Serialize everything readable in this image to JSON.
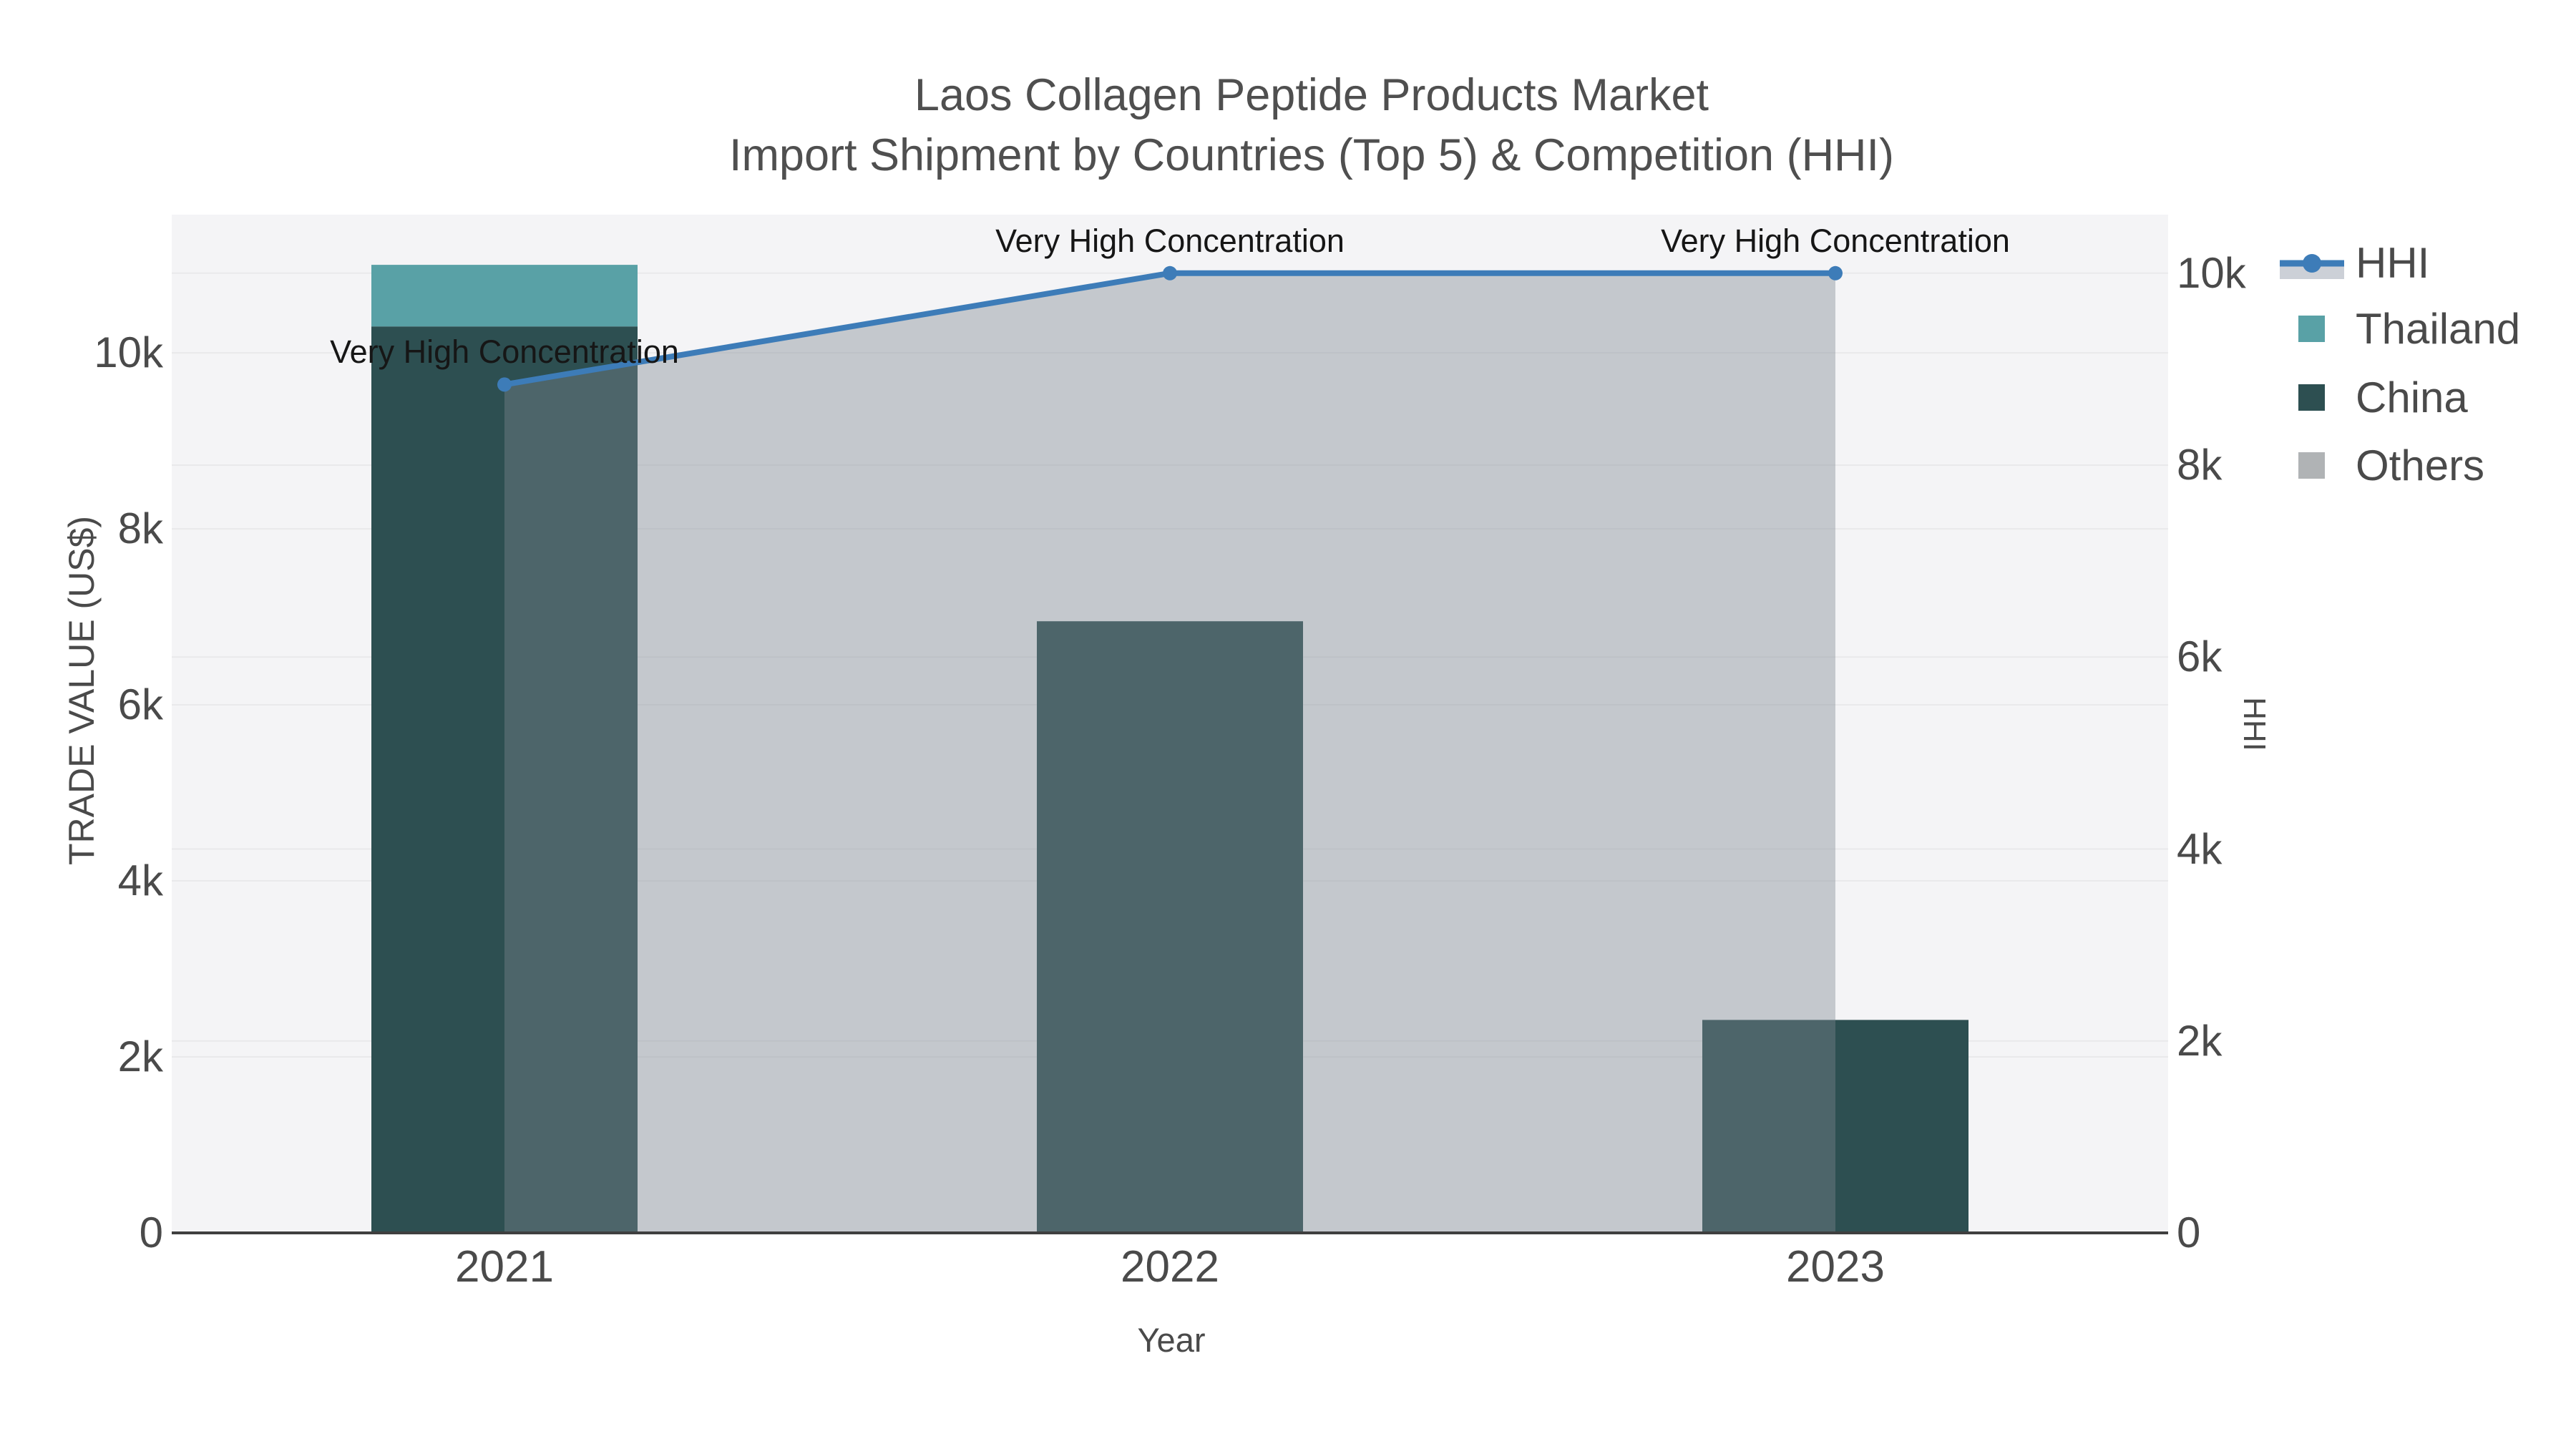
{
  "title": {
    "line1": "Laos Collagen Peptide Products Market",
    "line2": "Import Shipment by Countries (Top 5) & Competition (HHI)"
  },
  "axes": {
    "x": {
      "title": "Year",
      "ticks": [
        "2021",
        "2022",
        "2023"
      ]
    },
    "y_left": {
      "title": "TRADE VALUE (US$)",
      "ticks": [
        "0",
        "2k",
        "4k",
        "6k",
        "8k",
        "10k"
      ],
      "tick_values": [
        0,
        2000,
        4000,
        6000,
        8000,
        10000
      ]
    },
    "y_right": {
      "title": "HHI",
      "ticks": [
        "0",
        "2k",
        "4k",
        "6k",
        "8k",
        "10k"
      ],
      "tick_values": [
        0,
        2000,
        4000,
        6000,
        8000,
        10000
      ]
    }
  },
  "legend": {
    "items": [
      {
        "label": "HHI",
        "type": "line",
        "color": "#3d7cb8",
        "fill": "#ccd0d7"
      },
      {
        "label": "Thailand",
        "type": "bar",
        "color": "#59a1a6"
      },
      {
        "label": "China",
        "type": "bar",
        "color": "#2d4f51"
      },
      {
        "label": "Others",
        "type": "bar",
        "color": "#b0b3b5"
      }
    ]
  },
  "plot_colors": {
    "background": "#f4f4f6",
    "gridline": "#e9e9eb",
    "axis_line": "#3f3f3f",
    "hhi_area_fill": "rgba(125,134,144,0.40)"
  },
  "chart_data": {
    "type": "combo",
    "bar_mode": "stack",
    "categories": [
      "2021",
      "2022",
      "2023"
    ],
    "series": [
      {
        "name": "China",
        "type": "bar",
        "yaxis": "left",
        "color": "#2d4f51",
        "values": [
          10300,
          6950,
          2420
        ]
      },
      {
        "name": "Thailand",
        "type": "bar",
        "yaxis": "left",
        "color": "#59a1a6",
        "values": [
          700,
          0,
          0
        ]
      },
      {
        "name": "Others",
        "type": "bar",
        "yaxis": "left",
        "color": "#b0b3b5",
        "values": [
          0,
          0,
          0
        ]
      },
      {
        "name": "HHI",
        "type": "line",
        "yaxis": "right",
        "color": "#3d7cb8",
        "values": [
          8840,
          10000,
          10000
        ]
      }
    ],
    "annotations": [
      {
        "x": "2021",
        "text": "Very High Concentration"
      },
      {
        "x": "2022",
        "text": "Very High Concentration"
      },
      {
        "x": "2023",
        "text": "Very High Concentration"
      }
    ],
    "title": "Laos Collagen Peptide Products Market  Import Shipment by Countries (Top 5) & Competition (HHI)",
    "xlabel": "Year",
    "ylabel_left": "TRADE VALUE (US$)",
    "ylabel_right": "HHI",
    "y_left_range": [
      0,
      11570
    ],
    "y_right_range": [
      0,
      10610
    ],
    "gridline_step": 2000,
    "legend_position": "right",
    "grid": true
  }
}
